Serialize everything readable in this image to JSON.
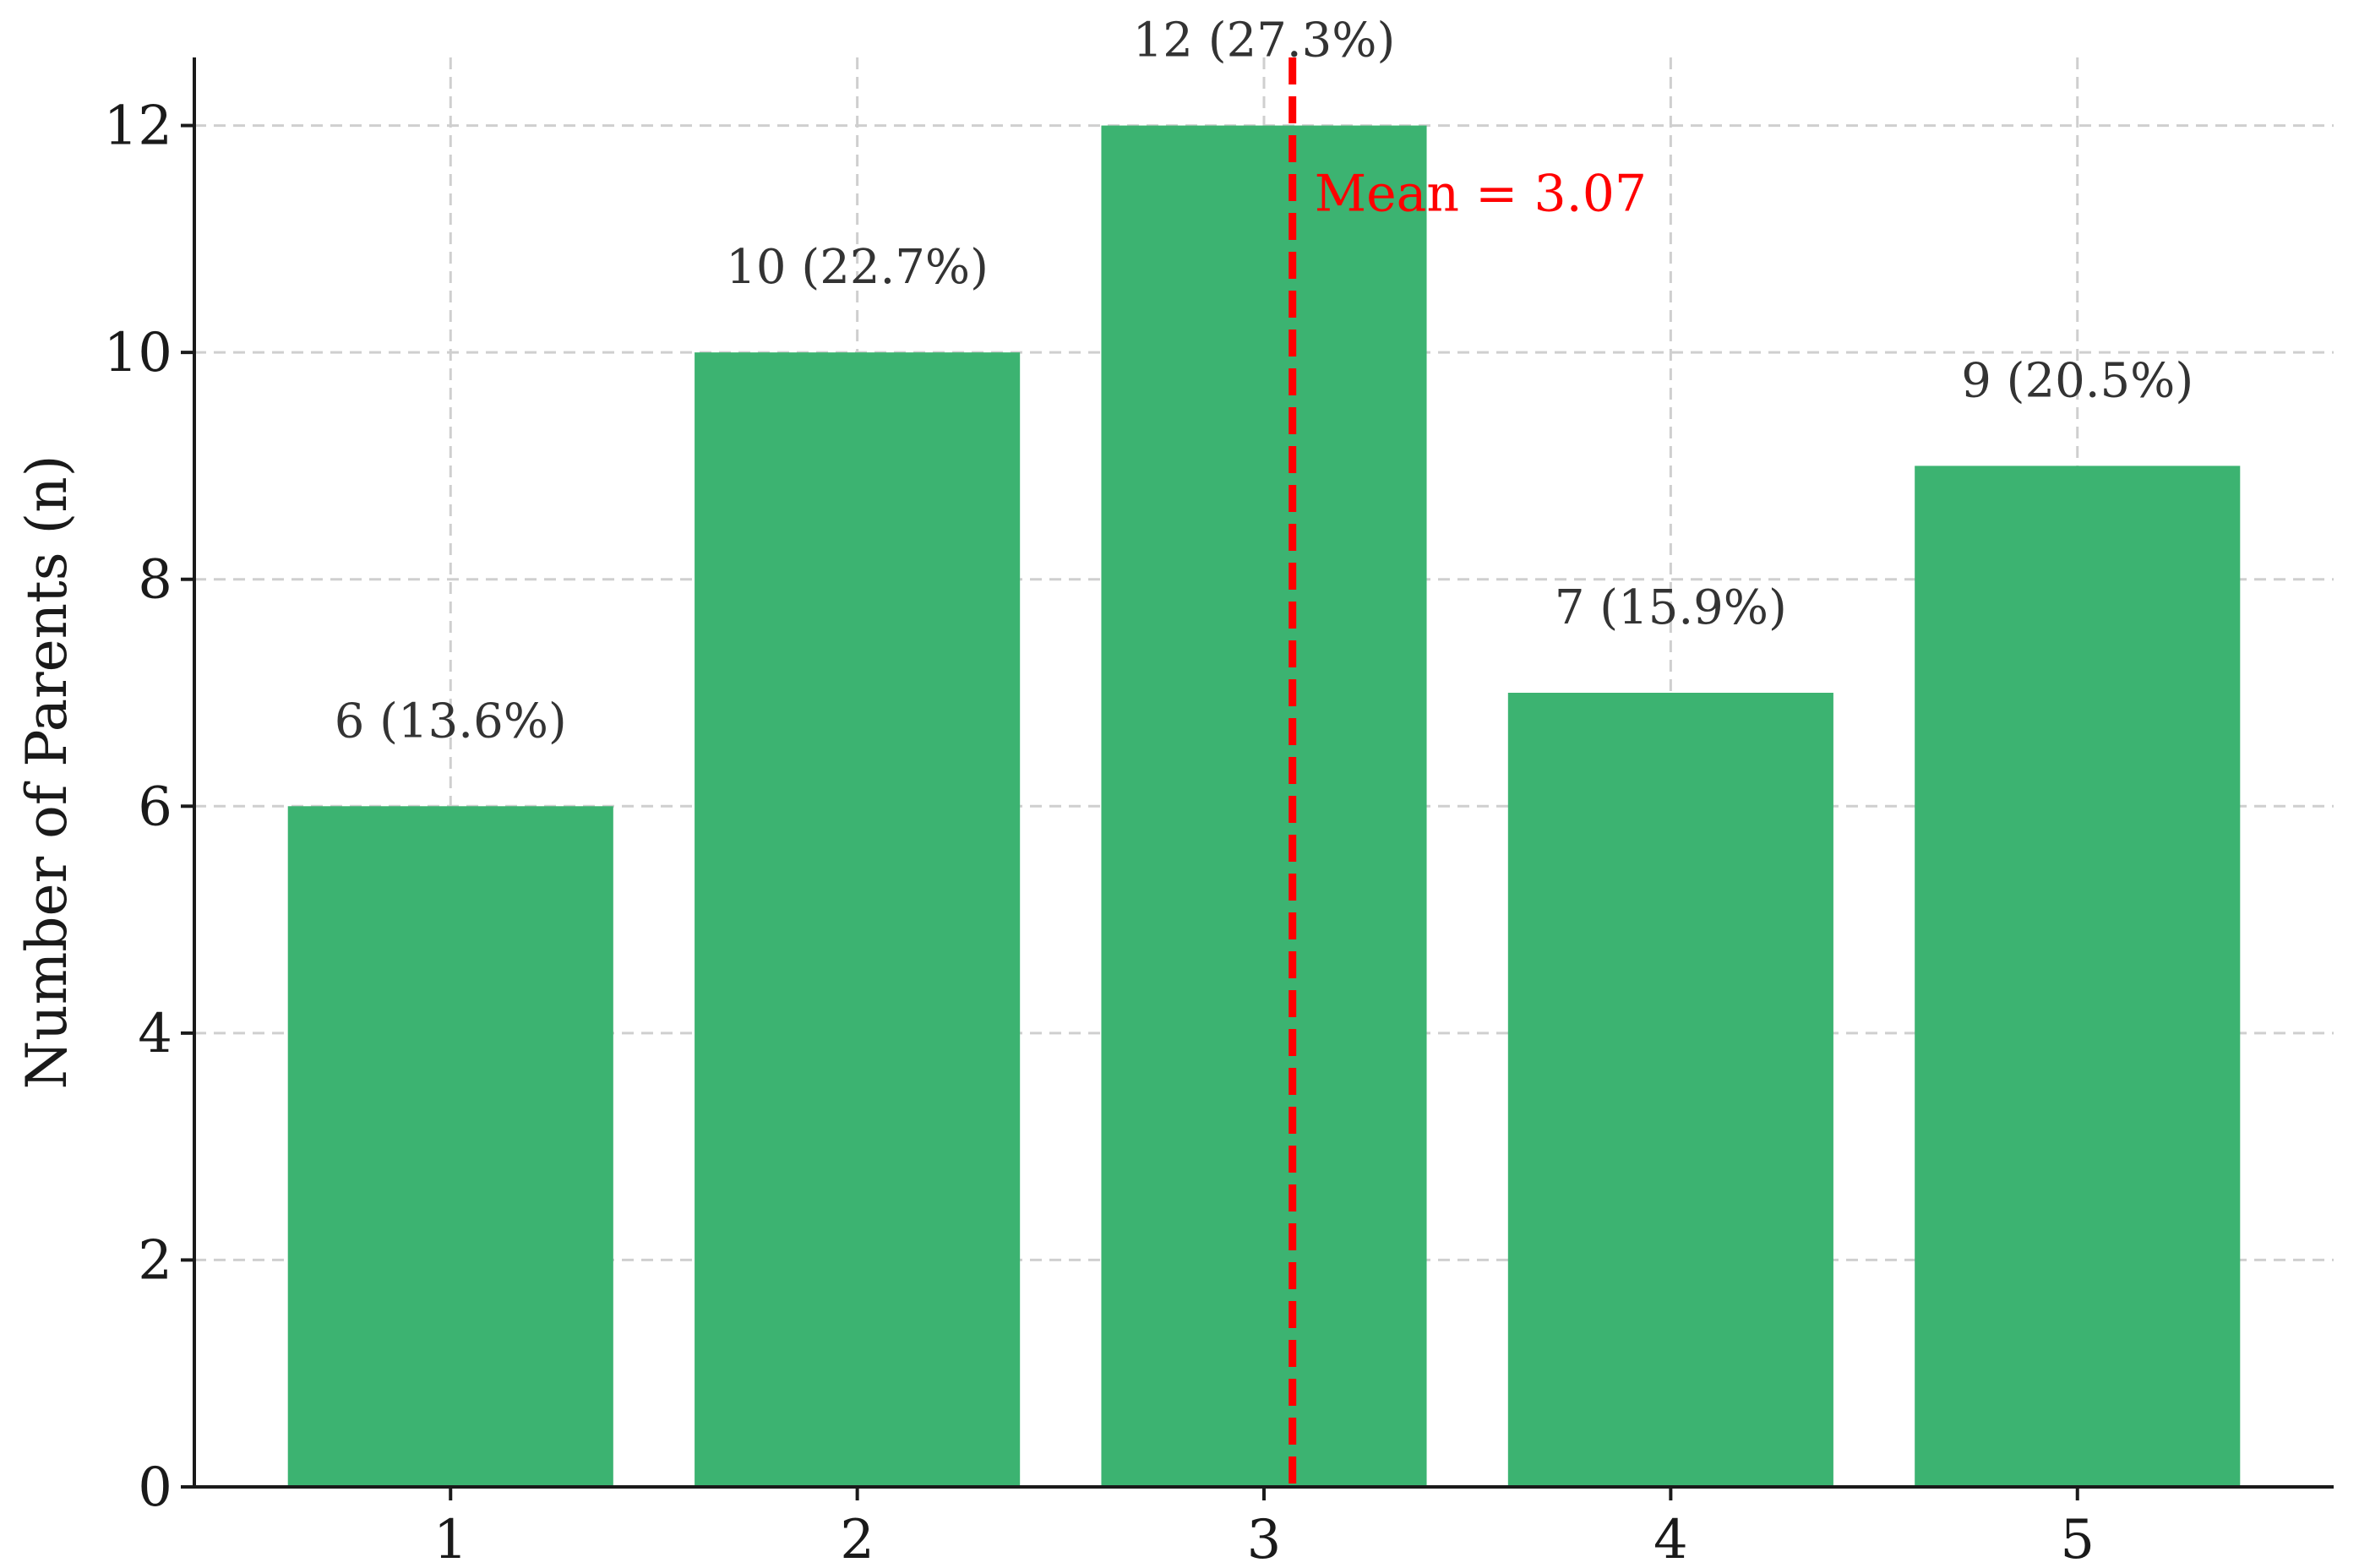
{
  "chart_data": {
    "type": "bar",
    "categories": [
      "1",
      "2",
      "3",
      "4",
      "5"
    ],
    "values": [
      6,
      10,
      12,
      7,
      9
    ],
    "bar_labels": [
      "6 (13.6%)",
      "10 (22.7%)",
      "12 (27.3%)",
      "7 (15.9%)",
      "9 (20.5%)"
    ],
    "title": "",
    "xlabel": "",
    "ylabel": "Number of Parents (n)",
    "ylim": [
      0,
      12.6
    ],
    "yticks": [
      0,
      2,
      4,
      6,
      8,
      10,
      12
    ],
    "grid": true,
    "legend": "none",
    "bar_color": "#3cb371",
    "mean": {
      "value": 3.07,
      "label": "Mean = 3.07",
      "color": "#ff0000",
      "style": "dashed"
    }
  }
}
